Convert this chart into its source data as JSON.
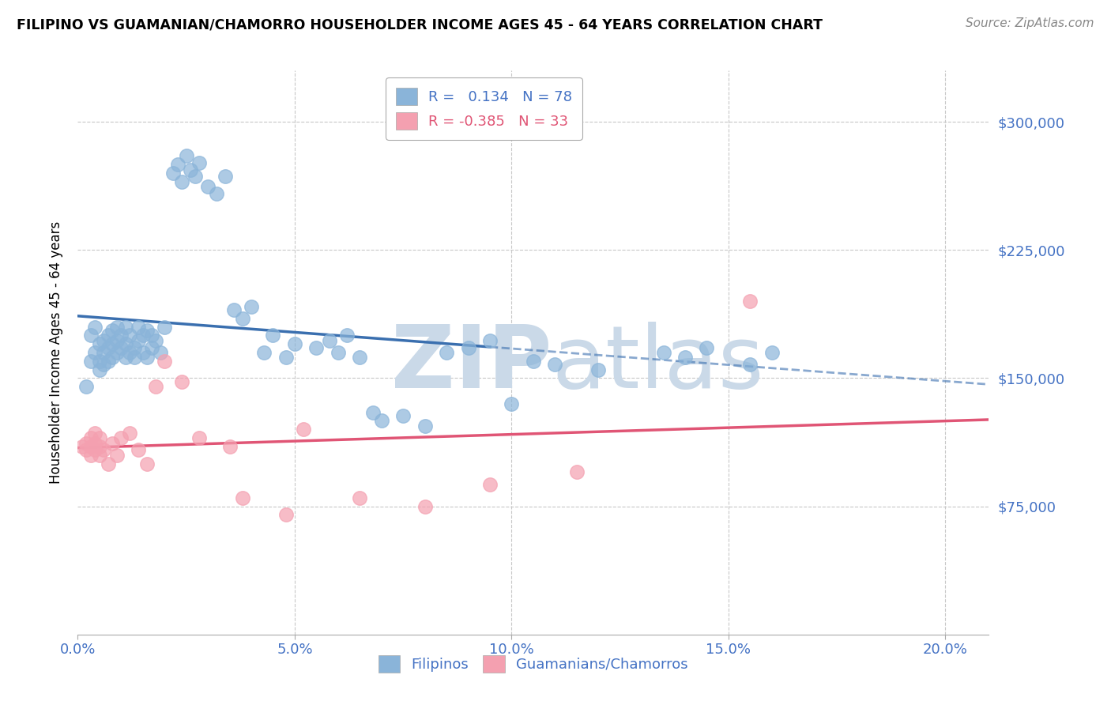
{
  "title": "FILIPINO VS GUAMANIAN/CHAMORRO HOUSEHOLDER INCOME AGES 45 - 64 YEARS CORRELATION CHART",
  "source_text": "Source: ZipAtlas.com",
  "ylabel": "Householder Income Ages 45 - 64 years",
  "xlabel_ticks": [
    "0.0%",
    "5.0%",
    "10.0%",
    "15.0%",
    "20.0%"
  ],
  "xlabel_tick_vals": [
    0.0,
    0.05,
    0.1,
    0.15,
    0.2
  ],
  "ytick_vals": [
    0,
    75000,
    150000,
    225000,
    300000
  ],
  "ytick_labels": [
    "",
    "$75,000",
    "$150,000",
    "$225,000",
    "$300,000"
  ],
  "ylim": [
    0,
    330000
  ],
  "xlim": [
    0.0,
    0.21
  ],
  "filipino_R": 0.134,
  "filipino_N": 78,
  "guamanian_R": -0.385,
  "guamanian_N": 33,
  "legend_labels": [
    "Filipinos",
    "Guamanians/Chamorros"
  ],
  "filipino_color": "#8ab4d9",
  "guamanian_color": "#f4a0b0",
  "filipino_line_color": "#3a6faf",
  "guamanian_line_color": "#e05575",
  "watermark_zip": "ZIP",
  "watermark_atlas": "atlas",
  "watermark_color": "#cad9e8",
  "background_color": "#ffffff",
  "grid_color": "#c8c8c8",
  "axis_color": "#4472c4",
  "filipino_x": [
    0.002,
    0.003,
    0.003,
    0.004,
    0.004,
    0.005,
    0.005,
    0.005,
    0.006,
    0.006,
    0.006,
    0.007,
    0.007,
    0.007,
    0.008,
    0.008,
    0.008,
    0.009,
    0.009,
    0.009,
    0.01,
    0.01,
    0.011,
    0.011,
    0.011,
    0.012,
    0.012,
    0.013,
    0.013,
    0.014,
    0.014,
    0.015,
    0.015,
    0.016,
    0.016,
    0.017,
    0.017,
    0.018,
    0.019,
    0.02,
    0.022,
    0.023,
    0.024,
    0.025,
    0.026,
    0.027,
    0.028,
    0.03,
    0.032,
    0.034,
    0.036,
    0.038,
    0.04,
    0.043,
    0.045,
    0.048,
    0.05,
    0.055,
    0.058,
    0.06,
    0.062,
    0.065,
    0.068,
    0.07,
    0.075,
    0.08,
    0.085,
    0.09,
    0.095,
    0.1,
    0.105,
    0.11,
    0.12,
    0.135,
    0.14,
    0.145,
    0.155,
    0.16
  ],
  "filipino_y": [
    145000,
    160000,
    175000,
    165000,
    180000,
    160000,
    170000,
    155000,
    158000,
    165000,
    172000,
    160000,
    168000,
    175000,
    162000,
    170000,
    178000,
    165000,
    172000,
    180000,
    168000,
    175000,
    162000,
    170000,
    180000,
    165000,
    175000,
    168000,
    162000,
    172000,
    180000,
    165000,
    175000,
    162000,
    178000,
    168000,
    175000,
    172000,
    165000,
    180000,
    270000,
    275000,
    265000,
    280000,
    272000,
    268000,
    276000,
    262000,
    258000,
    268000,
    190000,
    185000,
    192000,
    165000,
    175000,
    162000,
    170000,
    168000,
    172000,
    165000,
    175000,
    162000,
    130000,
    125000,
    128000,
    122000,
    165000,
    168000,
    172000,
    135000,
    160000,
    158000,
    155000,
    165000,
    162000,
    168000,
    158000,
    165000
  ],
  "guamanian_x": [
    0.001,
    0.002,
    0.002,
    0.003,
    0.003,
    0.003,
    0.004,
    0.004,
    0.004,
    0.005,
    0.005,
    0.005,
    0.006,
    0.007,
    0.008,
    0.009,
    0.01,
    0.012,
    0.014,
    0.016,
    0.018,
    0.02,
    0.024,
    0.028,
    0.035,
    0.038,
    0.048,
    0.052,
    0.065,
    0.08,
    0.095,
    0.115,
    0.155
  ],
  "guamanian_y": [
    110000,
    108000,
    112000,
    105000,
    110000,
    115000,
    108000,
    112000,
    118000,
    105000,
    110000,
    115000,
    108000,
    100000,
    112000,
    105000,
    115000,
    118000,
    108000,
    100000,
    145000,
    160000,
    148000,
    115000,
    110000,
    80000,
    70000,
    120000,
    80000,
    75000,
    88000,
    95000,
    195000
  ],
  "fil_trend_solid_end": 0.095,
  "fil_trend_dashed_start": 0.095
}
